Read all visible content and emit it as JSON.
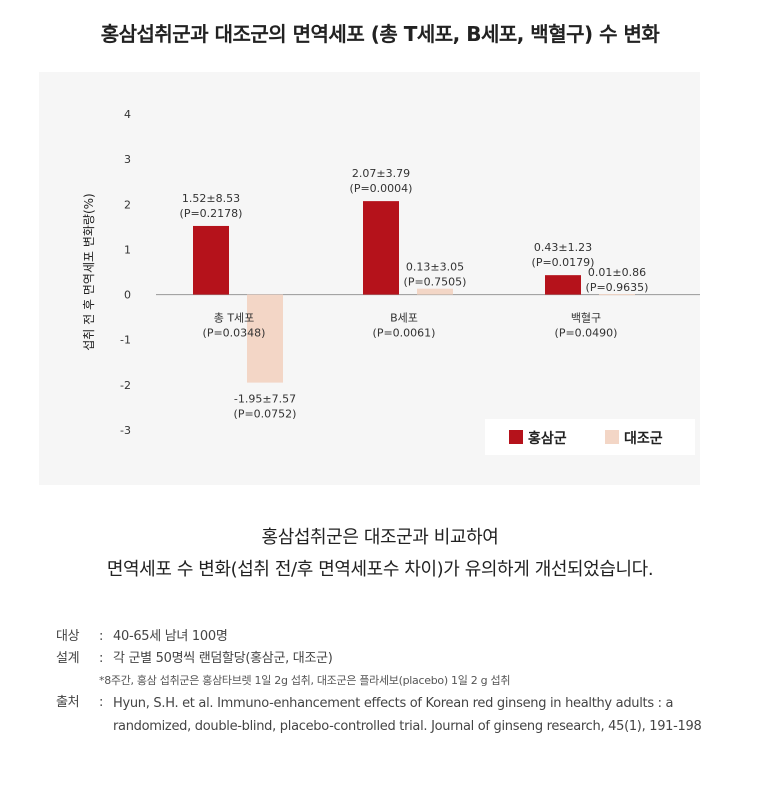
{
  "page": {
    "title": "홍삼섭취군과 대조군의 면역세포 (총 T세포, B세포, 백혈구) 수 변화",
    "summary_line1": "홍삼섭취군은 대조군과 비교하여",
    "summary_line2": "면역세포 수 변화(섭취 전/후 면역세포수 차이)가 유의하게 개선되었습니다."
  },
  "notes": {
    "subject_key": "대상",
    "subject_val": "40-65세 남녀 100명",
    "design_key": "설계",
    "design_val": "각 군별 50명씩 랜덤할당(홍삼군, 대조군)",
    "footnote": "*8주간, 홍삼 섭취군은 홍삼타브렛 1일 2g 섭취, 대조군은 플라세보(placebo) 1일 2 g 섭취",
    "source_key": "출처",
    "source_val": "Hyun, S.H. et al. Immuno-enhancement effects of Korean red ginseng in healthy adults : a randomized, double-blind, placebo-controlled trial. Journal of ginseng research, 45(1), 191-198",
    "separator": ":"
  },
  "chart_data": {
    "type": "bar",
    "ylabel": "섭취 전 후 면역세포 변화량(%)",
    "ylim": [
      -3,
      4
    ],
    "yticks": [
      "4",
      "3",
      "2",
      "1",
      "0",
      "-1",
      "-2",
      "-3"
    ],
    "categories": [
      {
        "label": "총 T세포",
        "p": "(P=0.0348)"
      },
      {
        "label": "B세포",
        "p": "(P=0.0061)"
      },
      {
        "label": "백혈구",
        "p": "(P=0.0490)"
      }
    ],
    "series": [
      {
        "name": "홍삼군",
        "color": "#b5121b",
        "values": [
          1.52,
          2.07,
          0.43
        ],
        "labels": [
          "1.52±8.53",
          "2.07±3.79",
          "0.43±1.23"
        ],
        "p_labels": [
          "(P=0.2178)",
          "(P=0.0004)",
          "(P=0.0179)"
        ]
      },
      {
        "name": "대조군",
        "color": "#f3d6c6",
        "values": [
          -1.95,
          0.13,
          0.01
        ],
        "labels": [
          "-1.95±7.57",
          "0.13±3.05",
          "0.01±0.86"
        ],
        "p_labels": [
          "(P=0.0752)",
          "(P=0.7505)",
          "(P=0.9635)"
        ]
      }
    ],
    "legend_position": "bottom-right",
    "grid": false
  }
}
